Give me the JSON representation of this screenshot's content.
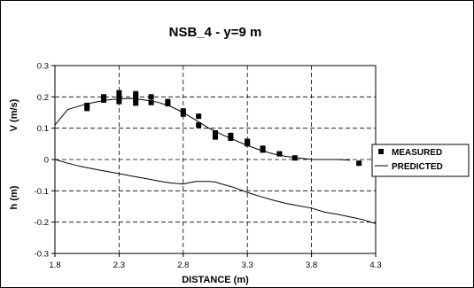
{
  "chart_data": {
    "type": "scatter",
    "title": "NSB_4 - y=9 m",
    "xlabel": "DISTANCE (m)",
    "ylabel_upper": "V (m/s)",
    "ylabel_lower": "h (m)",
    "xlim": [
      1.8,
      4.3
    ],
    "ylim": [
      -0.3,
      0.3
    ],
    "x_ticks": [
      "1.8",
      "2.3",
      "2.8",
      "3.3",
      "3.8",
      "4.3"
    ],
    "y_ticks": [
      "0.3",
      "0.2",
      "0.1",
      "0",
      "-0.1",
      "-0.2",
      "-0.3"
    ],
    "grid": true,
    "legend_position": "right",
    "series": [
      {
        "name": "MEASURED",
        "style": "square-markers",
        "points": [
          [
            2.05,
            0.163
          ],
          [
            2.05,
            0.173
          ],
          [
            2.18,
            0.19
          ],
          [
            2.18,
            0.2
          ],
          [
            2.3,
            0.185
          ],
          [
            2.3,
            0.197
          ],
          [
            2.3,
            0.213
          ],
          [
            2.43,
            0.18
          ],
          [
            2.43,
            0.192
          ],
          [
            2.43,
            0.2
          ],
          [
            2.43,
            0.21
          ],
          [
            2.55,
            0.182
          ],
          [
            2.55,
            0.2
          ],
          [
            2.68,
            0.178
          ],
          [
            2.68,
            0.185
          ],
          [
            2.8,
            0.145
          ],
          [
            2.8,
            0.155
          ],
          [
            2.92,
            0.11
          ],
          [
            2.92,
            0.138
          ],
          [
            3.05,
            0.072
          ],
          [
            3.05,
            0.085
          ],
          [
            3.17,
            0.068
          ],
          [
            3.17,
            0.077
          ],
          [
            3.3,
            0.05
          ],
          [
            3.3,
            0.058
          ],
          [
            3.42,
            0.03
          ],
          [
            3.42,
            0.036
          ],
          [
            3.55,
            0.018
          ],
          [
            3.67,
            0.005
          ],
          [
            4.17,
            -0.012
          ]
        ]
      },
      {
        "name": "PREDICTED",
        "style": "line",
        "segments": [
          [
            [
              1.8,
              0.11
            ],
            [
              1.9,
              0.16
            ],
            [
              2.0,
              0.172
            ],
            [
              2.1,
              0.182
            ],
            [
              2.2,
              0.19
            ],
            [
              2.3,
              0.194
            ],
            [
              2.4,
              0.195
            ],
            [
              2.5,
              0.19
            ],
            [
              2.6,
              0.183
            ],
            [
              2.7,
              0.17
            ],
            [
              2.8,
              0.15
            ],
            [
              2.9,
              0.125
            ],
            [
              3.0,
              0.1
            ],
            [
              3.1,
              0.08
            ],
            [
              3.2,
              0.062
            ],
            [
              3.3,
              0.045
            ],
            [
              3.4,
              0.03
            ],
            [
              3.5,
              0.018
            ],
            [
              3.6,
              0.01
            ],
            [
              3.7,
              0.005
            ],
            [
              3.8,
              0.0
            ],
            [
              3.9,
              0.0
            ],
            [
              4.0,
              0.0
            ],
            [
              4.1,
              -0.002
            ]
          ],
          [
            [
              1.8,
              0.0
            ],
            [
              1.9,
              -0.012
            ],
            [
              2.0,
              -0.022
            ],
            [
              2.1,
              -0.03
            ],
            [
              2.2,
              -0.038
            ],
            [
              2.3,
              -0.045
            ],
            [
              2.4,
              -0.053
            ],
            [
              2.5,
              -0.06
            ],
            [
              2.6,
              -0.068
            ],
            [
              2.7,
              -0.075
            ],
            [
              2.8,
              -0.078
            ],
            [
              2.85,
              -0.074
            ],
            [
              2.9,
              -0.07
            ],
            [
              3.0,
              -0.07
            ],
            [
              3.05,
              -0.072
            ],
            [
              3.1,
              -0.078
            ],
            [
              3.2,
              -0.09
            ],
            [
              3.3,
              -0.105
            ],
            [
              3.4,
              -0.118
            ],
            [
              3.5,
              -0.13
            ],
            [
              3.6,
              -0.14
            ],
            [
              3.7,
              -0.148
            ],
            [
              3.8,
              -0.155
            ],
            [
              3.9,
              -0.168
            ],
            [
              4.0,
              -0.175
            ],
            [
              4.1,
              -0.183
            ],
            [
              4.2,
              -0.192
            ],
            [
              4.3,
              -0.205
            ]
          ]
        ]
      }
    ]
  }
}
